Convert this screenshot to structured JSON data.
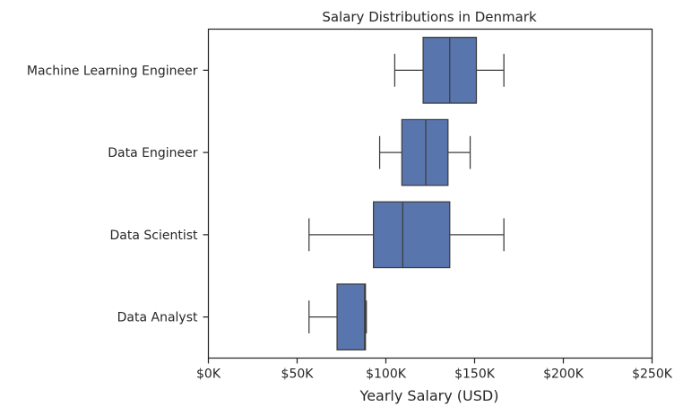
{
  "chart_data": {
    "type": "boxplot",
    "title": "Salary Distributions in Denmark",
    "xlabel": "Yearly Salary (USD)",
    "ylabel": "",
    "xlim": [
      0,
      250000
    ],
    "xticks": [
      0,
      50000,
      100000,
      150000,
      200000,
      250000
    ],
    "xtick_labels": [
      "$0K",
      "$50K",
      "$100K",
      "$150K",
      "$200K",
      "$250K"
    ],
    "grid": false,
    "colors": {
      "box_fill": "#5875ad",
      "line": "#3d3d3d",
      "axis": "#262626"
    },
    "boxes": [
      {
        "category": "Machine Learning Engineer",
        "whisker_low": 105000,
        "q1": 121000,
        "median": 136000,
        "q3": 151000,
        "whisker_high": 166500
      },
      {
        "category": "Data Engineer",
        "whisker_low": 96500,
        "q1": 109000,
        "median": 122500,
        "q3": 135000,
        "whisker_high": 147500
      },
      {
        "category": "Data Scientist",
        "whisker_low": 56700,
        "q1": 93000,
        "median": 109500,
        "q3": 136000,
        "whisker_high": 166500
      },
      {
        "category": "Data Analyst",
        "whisker_low": 56700,
        "q1": 72500,
        "median": 88000,
        "q3": 88500,
        "whisker_high": 89000
      }
    ]
  }
}
